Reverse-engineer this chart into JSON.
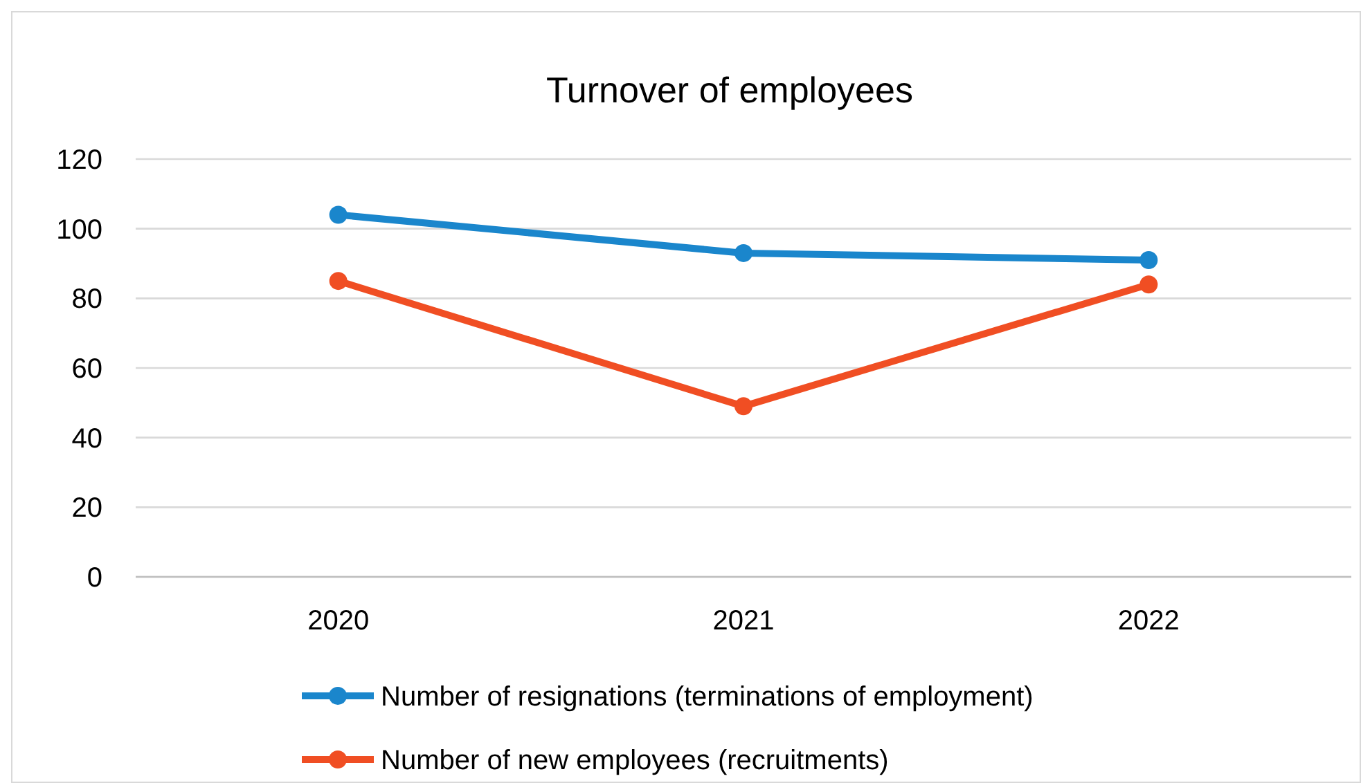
{
  "chart_data": {
    "type": "line",
    "title": "Turnover of employees",
    "categories": [
      "2020",
      "2021",
      "2022"
    ],
    "series": [
      {
        "name": "Number of resignations (terminations of employment)",
        "color": "#1a86cc",
        "values": [
          104,
          93,
          91
        ]
      },
      {
        "name": "Number of new employees (recruitments)",
        "color": "#f04e23",
        "values": [
          85,
          49,
          84
        ]
      }
    ],
    "ylim": [
      0,
      120
    ],
    "yticks": [
      0,
      20,
      40,
      60,
      80,
      100,
      120
    ],
    "grid": "y",
    "legend": "bottom",
    "marker": "circle",
    "line_style": "solid"
  }
}
